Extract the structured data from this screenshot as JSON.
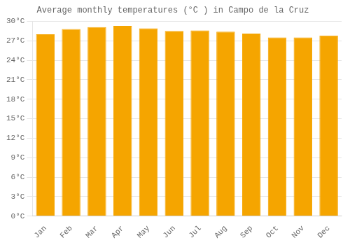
{
  "chart_data": {
    "type": "bar",
    "title": "Average monthly temperatures (°C ) in Campo de la Cruz",
    "categories": [
      "Jan",
      "Feb",
      "Mar",
      "Apr",
      "May",
      "Jun",
      "Jul",
      "Aug",
      "Sep",
      "Oct",
      "Nov",
      "Dec"
    ],
    "values": [
      28.0,
      28.8,
      29.1,
      29.3,
      28.9,
      28.5,
      28.6,
      28.4,
      28.1,
      27.5,
      27.5,
      27.8
    ],
    "color": "#F5A500",
    "ylim": [
      0,
      30
    ],
    "yticks": [
      {
        "value": 0,
        "label": "0°C"
      },
      {
        "value": 3,
        "label": "3°C"
      },
      {
        "value": 6,
        "label": "6°C"
      },
      {
        "value": 9,
        "label": "9°C"
      },
      {
        "value": 12,
        "label": "12°C"
      },
      {
        "value": 15,
        "label": "15°C"
      },
      {
        "value": 18,
        "label": "18°C"
      },
      {
        "value": 21,
        "label": "21°C"
      },
      {
        "value": 24,
        "label": "24°C"
      },
      {
        "value": 27,
        "label": "27°C"
      },
      {
        "value": 30,
        "label": "30°C"
      }
    ],
    "grid": true
  }
}
